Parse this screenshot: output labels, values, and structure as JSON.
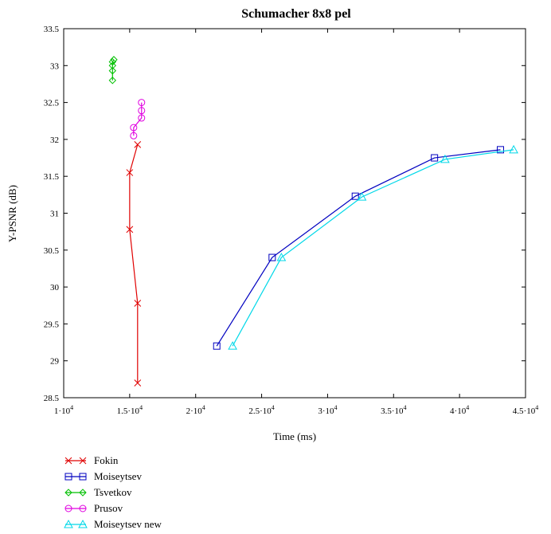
{
  "chart_data": {
    "type": "line",
    "title": "Schumacher 8x8 pel",
    "xlabel": "Time (ms)",
    "ylabel": "Y-PSNR (dB)",
    "xlim": [
      10000,
      45000
    ],
    "ylim": [
      28.5,
      33.5
    ],
    "xticks": [
      10000,
      15000,
      20000,
      25000,
      30000,
      35000,
      40000,
      45000
    ],
    "xtick_labels": [
      {
        "mant": "1",
        "exp": "4"
      },
      {
        "mant": "1.5",
        "exp": "4"
      },
      {
        "mant": "2",
        "exp": "4"
      },
      {
        "mant": "2.5",
        "exp": "4"
      },
      {
        "mant": "3",
        "exp": "4"
      },
      {
        "mant": "3.5",
        "exp": "4"
      },
      {
        "mant": "4",
        "exp": "4"
      },
      {
        "mant": "4.5",
        "exp": "4"
      }
    ],
    "xtick_sep": "·10",
    "yticks": [
      "28.5",
      "29",
      "29.5",
      "30",
      "30.5",
      "31",
      "31.5",
      "32",
      "32.5",
      "33",
      "33.5"
    ],
    "grid": false,
    "legend_position": "below",
    "series": [
      {
        "name": "Fokin",
        "color": "#e00000",
        "marker": "x",
        "points": [
          [
            15600,
            28.7
          ],
          [
            15600,
            29.78
          ],
          [
            15000,
            30.78
          ],
          [
            15000,
            31.55
          ],
          [
            15600,
            31.93
          ]
        ]
      },
      {
        "name": "Moiseytsev",
        "color": "#0000c0",
        "marker": "square",
        "points": [
          [
            21600,
            29.2
          ],
          [
            25800,
            30.4
          ],
          [
            32100,
            31.23
          ],
          [
            38100,
            31.75
          ],
          [
            43100,
            31.86
          ]
        ]
      },
      {
        "name": "Tsvetkov",
        "color": "#00c000",
        "marker": "diamond",
        "points": [
          [
            13700,
            32.8
          ],
          [
            13700,
            32.93
          ],
          [
            13700,
            33.0
          ],
          [
            13700,
            33.05
          ],
          [
            13800,
            33.08
          ]
        ]
      },
      {
        "name": "Prusov",
        "color": "#e000e0",
        "marker": "circle",
        "points": [
          [
            15300,
            32.05
          ],
          [
            15300,
            32.16
          ],
          [
            15900,
            32.29
          ],
          [
            15900,
            32.39
          ],
          [
            15900,
            32.5
          ]
        ]
      },
      {
        "name": "Moiseytsev new",
        "color": "#00d8e8",
        "marker": "triangle",
        "points": [
          [
            22800,
            29.2
          ],
          [
            26500,
            30.4
          ],
          [
            32600,
            31.22
          ],
          [
            38900,
            31.73
          ],
          [
            44100,
            31.86
          ]
        ]
      }
    ]
  }
}
